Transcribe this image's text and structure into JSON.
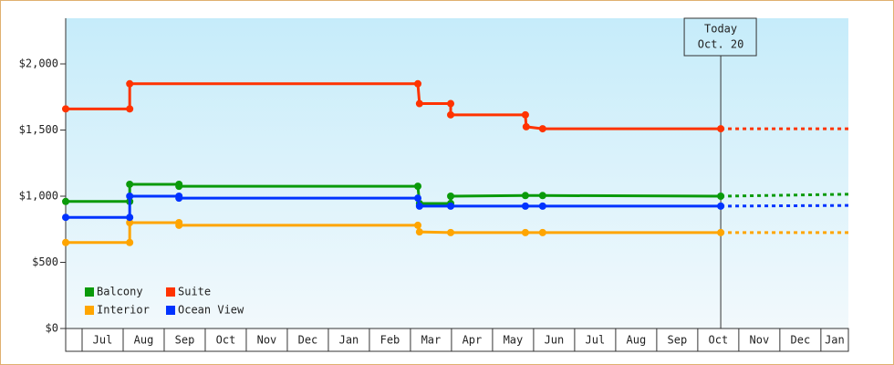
{
  "chart_data": {
    "type": "line",
    "xlim": [
      -0.4,
      18.67
    ],
    "xticks": [
      {
        "value": 0.5,
        "label": "Jul"
      },
      {
        "value": 1.5,
        "label": "Aug"
      },
      {
        "value": 2.5,
        "label": "Sep"
      },
      {
        "value": 3.5,
        "label": "Oct"
      },
      {
        "value": 4.5,
        "label": "Nov"
      },
      {
        "value": 5.5,
        "label": "Dec"
      },
      {
        "value": 6.5,
        "label": "Jan"
      },
      {
        "value": 7.5,
        "label": "Feb"
      },
      {
        "value": 8.5,
        "label": "Mar"
      },
      {
        "value": 9.5,
        "label": "Apr"
      },
      {
        "value": 10.5,
        "label": "May"
      },
      {
        "value": 11.5,
        "label": "Jun"
      },
      {
        "value": 12.5,
        "label": "Jul"
      },
      {
        "value": 13.5,
        "label": "Aug"
      },
      {
        "value": 14.5,
        "label": "Sep"
      },
      {
        "value": 15.5,
        "label": "Oct"
      },
      {
        "value": 16.5,
        "label": "Nov"
      },
      {
        "value": 17.5,
        "label": "Dec"
      },
      {
        "value": 18.5,
        "label": "Jan"
      }
    ],
    "ylim": [
      0,
      2345
    ],
    "yticks": [
      {
        "value": 0,
        "label": "$0"
      },
      {
        "value": 500,
        "label": "$500"
      },
      {
        "value": 1000,
        "label": "$1,000"
      },
      {
        "value": 1500,
        "label": "$1,500"
      },
      {
        "value": 2000,
        "label": "$2,000"
      }
    ],
    "annotation": {
      "x": 15.56,
      "lines": [
        "Today",
        "Oct. 20"
      ]
    },
    "series": [
      {
        "name": "Balcony",
        "color": "#0a9a0a",
        "x": [
          -0.4,
          1.16,
          1.16,
          2.36,
          2.36,
          8.18,
          8.22,
          8.98,
          8.98,
          10.8,
          11.22,
          15.56
        ],
        "values": [
          960,
          960,
          1090,
          1090,
          1075,
          1075,
          945,
          945,
          1000,
          1005,
          1005,
          1000
        ],
        "projection": {
          "x": [
            15.56,
            18.67
          ],
          "values": [
            1000,
            1015
          ]
        }
      },
      {
        "name": "Suite",
        "color": "#ff3300",
        "x": [
          -0.4,
          1.16,
          1.16,
          8.18,
          8.22,
          8.98,
          8.98,
          10.8,
          10.82,
          11.22,
          15.56
        ],
        "values": [
          1660,
          1660,
          1850,
          1850,
          1700,
          1700,
          1615,
          1615,
          1525,
          1510,
          1510
        ],
        "projection": {
          "x": [
            15.56,
            18.67
          ],
          "values": [
            1510,
            1510
          ]
        }
      },
      {
        "name": "Interior",
        "color": "#ffa500",
        "x": [
          -0.4,
          1.16,
          1.16,
          2.36,
          2.36,
          8.18,
          8.22,
          8.98,
          10.8,
          11.22,
          15.56
        ],
        "values": [
          650,
          650,
          800,
          800,
          780,
          780,
          730,
          725,
          725,
          725,
          725
        ],
        "projection": {
          "x": [
            15.56,
            18.67
          ],
          "values": [
            725,
            725
          ]
        }
      },
      {
        "name": "Ocean View",
        "color": "#0033ff",
        "x": [
          -0.4,
          1.16,
          1.16,
          2.36,
          2.36,
          8.18,
          8.22,
          8.98,
          10.8,
          11.22,
          15.56
        ],
        "values": [
          840,
          840,
          1000,
          1000,
          985,
          985,
          925,
          925,
          925,
          925,
          925
        ],
        "projection": {
          "x": [
            15.56,
            18.67
          ],
          "values": [
            925,
            930
          ]
        }
      }
    ]
  }
}
